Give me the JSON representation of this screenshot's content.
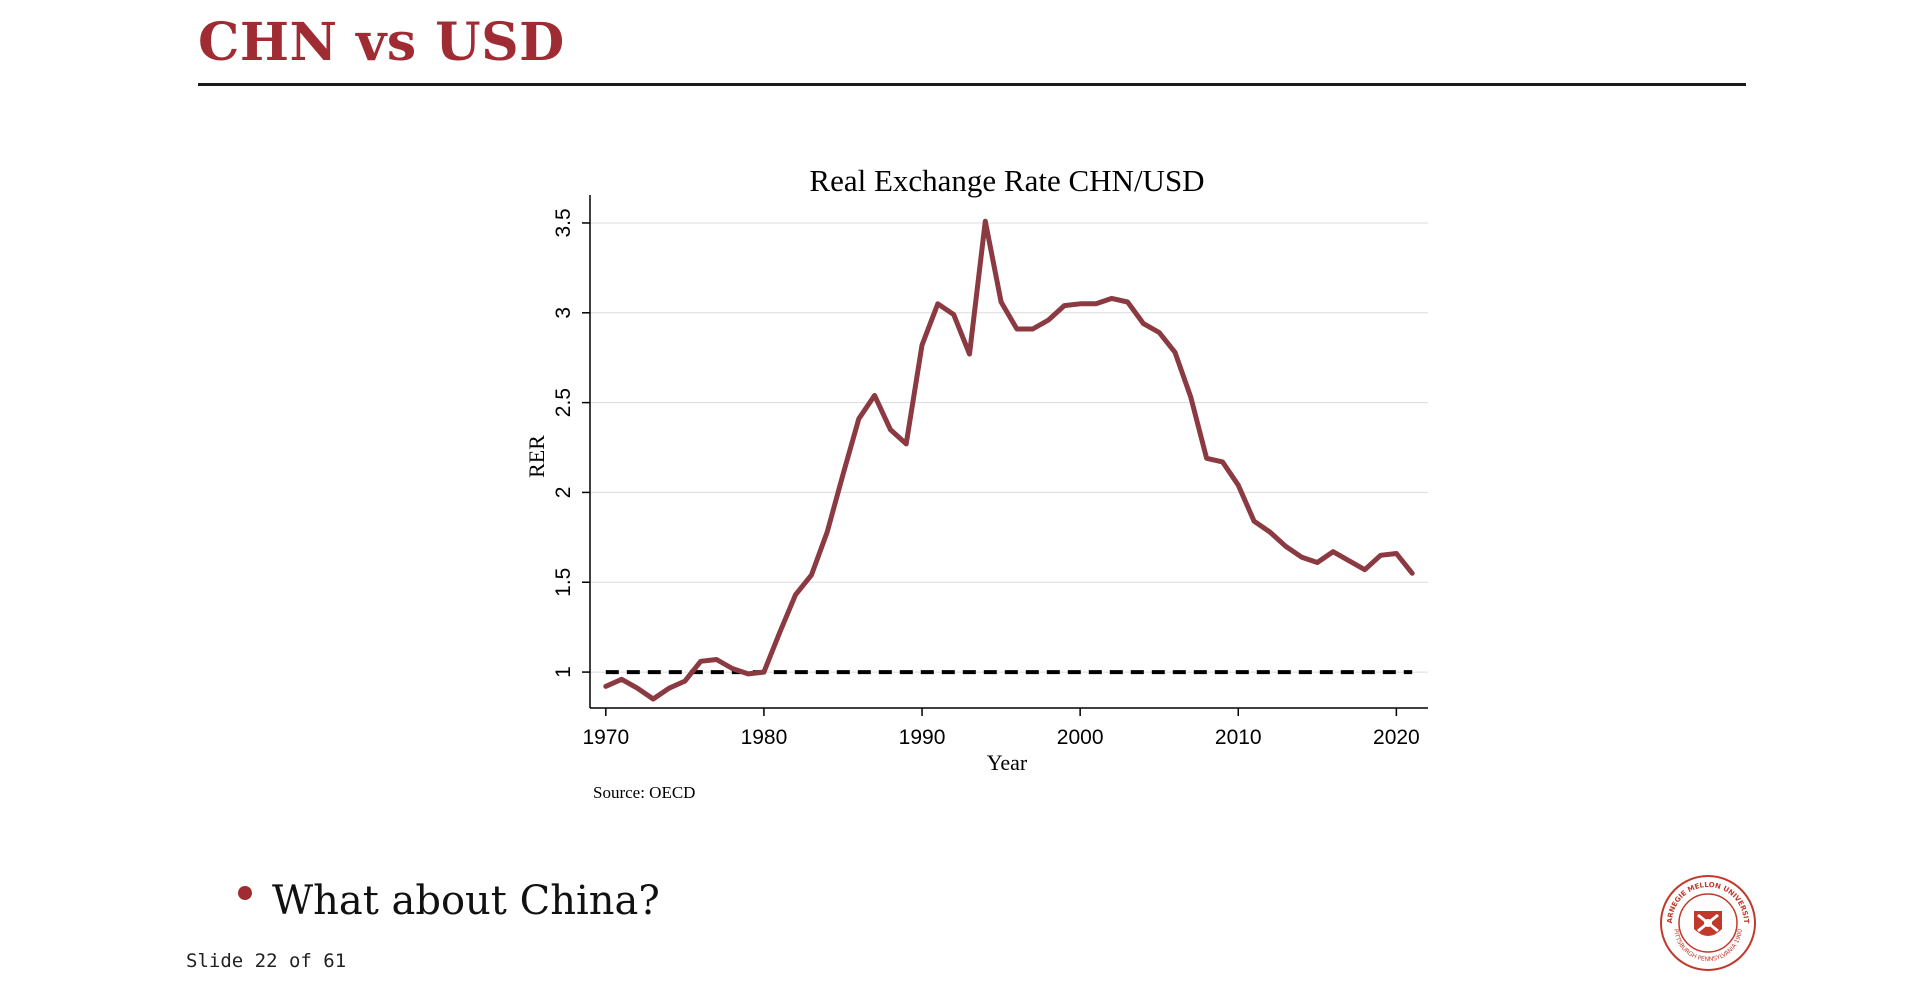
{
  "slide": {
    "title": "CHN vs USD",
    "bullet": "What about China?",
    "counter": "Slide 22 of 61",
    "accent_color": "#a02c33"
  },
  "seal": {
    "text_top": "CARNEGIE MELLON UNIVERSITY",
    "text_bottom": "PITTSBURGH PENNSYLVANIA 1900"
  },
  "chart_data": {
    "type": "line",
    "title": "Real Exchange Rate CHN/USD",
    "xlabel": "Year",
    "ylabel": "RER",
    "note": "Source: OECD",
    "xlim": [
      1969,
      2022
    ],
    "ylim": [
      0.8,
      3.6
    ],
    "xticks": [
      1970,
      1980,
      1990,
      2000,
      2010,
      2020
    ],
    "yticks": [
      1,
      1.5,
      2,
      2.5,
      3,
      3.5
    ],
    "ytick_labels": [
      "1",
      "1.5",
      "2",
      "2.5",
      "3",
      "3.5"
    ],
    "grid": "horizontal",
    "line_color": "#8b3a42",
    "reference_line": {
      "y": 1,
      "style": "dashed",
      "color": "#000000"
    },
    "series": [
      {
        "x": [
          1970,
          1971,
          1972,
          1973,
          1974,
          1975,
          1976,
          1977,
          1978,
          1979,
          1980,
          1981,
          1982,
          1983,
          1984,
          1985,
          1986,
          1987,
          1988,
          1989,
          1990,
          1991,
          1992,
          1993,
          1994,
          1995,
          1996,
          1997,
          1998,
          1999,
          2000,
          2001,
          2002,
          2003,
          2004,
          2005,
          2006,
          2007,
          2008,
          2009,
          2010,
          2011,
          2012,
          2013,
          2014,
          2015,
          2016,
          2017,
          2018,
          2019,
          2020,
          2021
        ],
        "values": [
          0.92,
          0.96,
          0.91,
          0.85,
          0.91,
          0.95,
          1.06,
          1.07,
          1.02,
          0.99,
          1.0,
          1.22,
          1.43,
          1.54,
          1.78,
          2.1,
          2.41,
          2.54,
          2.35,
          2.27,
          2.82,
          3.05,
          2.99,
          2.77,
          3.51,
          3.06,
          2.91,
          2.91,
          2.96,
          3.04,
          3.05,
          3.05,
          3.08,
          3.06,
          2.94,
          2.89,
          2.78,
          2.53,
          2.19,
          2.17,
          2.04,
          1.84,
          1.78,
          1.7,
          1.64,
          1.61,
          1.67,
          1.62,
          1.57,
          1.65,
          1.66,
          1.55
        ]
      }
    ]
  }
}
